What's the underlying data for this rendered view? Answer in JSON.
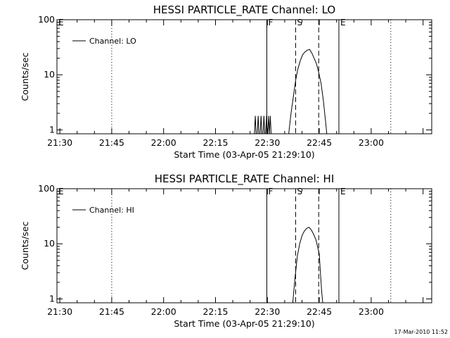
{
  "chart_data": [
    {
      "type": "line",
      "title": "HESSI PARTICLE_RATE Channel: LO",
      "xlabel": "Start Time (03-Apr-05 21:29:10)",
      "ylabel": "Counts/sec",
      "yscale": "log",
      "xlim": [
        "21:29:10",
        "23:17:30"
      ],
      "ylim": [
        0.85,
        100
      ],
      "xticks": [
        "21:30",
        "21:45",
        "22:00",
        "22:15",
        "22:30",
        "22:45",
        "23:00"
      ],
      "yticks": [
        "1",
        "10",
        "100"
      ],
      "legend": {
        "position": "top-left",
        "label": "Channel: LO"
      },
      "markers": [
        {
          "label": "E",
          "time": "21:29:10",
          "style": "solid"
        },
        {
          "label": "",
          "time": "21:45:00",
          "style": "dotted"
        },
        {
          "label": "F",
          "time": "22:29:50",
          "style": "solid"
        },
        {
          "label": "S",
          "time": "22:38:10",
          "style": "dashed"
        },
        {
          "label": "",
          "time": "22:44:50",
          "style": "dashed"
        },
        {
          "label": "E",
          "time": "22:50:40",
          "style": "solid"
        },
        {
          "label": "",
          "time": "23:05:40",
          "style": "dotted"
        }
      ],
      "series": [
        {
          "name": "Channel: LO",
          "spikes": [
            "22:26:30",
            "22:27:20",
            "22:28:10",
            "22:29:00",
            "22:29:45",
            "22:30:20",
            "22:30:50"
          ],
          "spike_peak": 1.8,
          "points": [
            [
              "22:36:10",
              0.85
            ],
            [
              "22:36:50",
              2.0
            ],
            [
              "22:37:30",
              4.0
            ],
            [
              "22:38:10",
              8.0
            ],
            [
              "22:38:50",
              13.0
            ],
            [
              "22:39:30",
              18.0
            ],
            [
              "22:40:10",
              23.0
            ],
            [
              "22:40:50",
              26.0
            ],
            [
              "22:41:30",
              28.0
            ],
            [
              "22:42:10",
              29.0
            ],
            [
              "22:42:50",
              25.0
            ],
            [
              "22:43:30",
              20.0
            ],
            [
              "22:44:10",
              16.0
            ],
            [
              "22:44:50",
              11.0
            ],
            [
              "22:45:30",
              7.0
            ],
            [
              "22:46:10",
              3.5
            ],
            [
              "22:46:50",
              1.4
            ],
            [
              "22:47:10",
              0.85
            ]
          ]
        }
      ]
    },
    {
      "type": "line",
      "title": "HESSI PARTICLE_RATE Channel: HI",
      "xlabel": "Start Time (03-Apr-05 21:29:10)",
      "ylabel": "Counts/sec",
      "yscale": "log",
      "xlim": [
        "21:29:10",
        "23:17:30"
      ],
      "ylim": [
        0.85,
        100
      ],
      "xticks": [
        "21:30",
        "21:45",
        "22:00",
        "22:15",
        "22:30",
        "22:45",
        "23:00"
      ],
      "yticks": [
        "1",
        "10",
        "100"
      ],
      "legend": {
        "position": "top-left",
        "label": "Channel: HI"
      },
      "markers": [
        {
          "label": "E",
          "time": "21:29:10",
          "style": "solid"
        },
        {
          "label": "",
          "time": "21:45:00",
          "style": "dotted"
        },
        {
          "label": "F",
          "time": "22:29:50",
          "style": "solid"
        },
        {
          "label": "S",
          "time": "22:38:10",
          "style": "dashed"
        },
        {
          "label": "",
          "time": "22:44:50",
          "style": "dashed"
        },
        {
          "label": "E",
          "time": "22:50:40",
          "style": "solid"
        },
        {
          "label": "",
          "time": "23:05:40",
          "style": "dotted"
        }
      ],
      "series": [
        {
          "name": "Channel: HI",
          "points": [
            [
              "22:37:20",
              0.85
            ],
            [
              "22:38:00",
              2.5
            ],
            [
              "22:38:40",
              6.0
            ],
            [
              "22:39:20",
              10.0
            ],
            [
              "22:40:00",
              14.0
            ],
            [
              "22:40:40",
              17.0
            ],
            [
              "22:41:20",
              19.0
            ],
            [
              "22:42:00",
              20.0
            ],
            [
              "22:42:40",
              18.0
            ],
            [
              "22:43:20",
              15.0
            ],
            [
              "22:44:00",
              12.0
            ],
            [
              "22:44:40",
              8.0
            ],
            [
              "22:45:00",
              6.5
            ],
            [
              "22:45:20",
              3.0
            ],
            [
              "22:45:40",
              1.4
            ],
            [
              "22:46:00",
              0.85
            ]
          ]
        }
      ]
    }
  ],
  "footer": {
    "timestamp": "17-Mar-2010 11:52"
  }
}
